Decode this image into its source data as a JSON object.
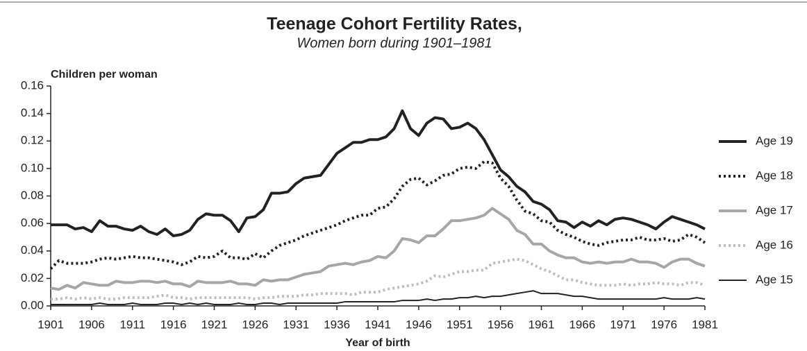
{
  "chart_data": {
    "type": "line",
    "title": "Teenage Cohort Fertility Rates,",
    "subtitle": "Women born during 1901–1981",
    "y_label": "Children per woman",
    "x_label": "Year of birth",
    "x": [
      1901,
      1902,
      1903,
      1904,
      1905,
      1906,
      1907,
      1908,
      1909,
      1910,
      1911,
      1912,
      1913,
      1914,
      1915,
      1916,
      1917,
      1918,
      1919,
      1920,
      1921,
      1922,
      1923,
      1924,
      1925,
      1926,
      1927,
      1928,
      1929,
      1930,
      1931,
      1932,
      1933,
      1934,
      1935,
      1936,
      1937,
      1938,
      1939,
      1940,
      1941,
      1942,
      1943,
      1944,
      1945,
      1946,
      1947,
      1948,
      1949,
      1950,
      1951,
      1952,
      1953,
      1954,
      1955,
      1956,
      1957,
      1958,
      1959,
      1960,
      1961,
      1962,
      1963,
      1964,
      1965,
      1966,
      1967,
      1968,
      1969,
      1970,
      1971,
      1972,
      1973,
      1974,
      1975,
      1976,
      1977,
      1978,
      1979,
      1980,
      1981
    ],
    "xlim": [
      1901,
      1981
    ],
    "xticks": [
      1901,
      1906,
      1911,
      1916,
      1921,
      1926,
      1931,
      1936,
      1941,
      1946,
      1951,
      1956,
      1961,
      1966,
      1971,
      1976,
      1981
    ],
    "ylim": [
      0,
      0.16
    ],
    "yticks": [
      {
        "value": 0,
        "label": "0.00"
      },
      0.02,
      0.04,
      0.06,
      0.08,
      {
        "value": 0.1,
        "label": "0.10"
      },
      0.12,
      0.14,
      0.16
    ],
    "legend": "right",
    "series": [
      {
        "name": "Age 19",
        "color": "#222222",
        "line_style": "solid",
        "weight": "heavy",
        "values": [
          0.059,
          0.059,
          0.059,
          0.056,
          0.057,
          0.054,
          0.062,
          0.058,
          0.058,
          0.056,
          0.055,
          0.058,
          0.054,
          0.052,
          0.056,
          0.051,
          0.052,
          0.055,
          0.063,
          0.067,
          0.066,
          0.066,
          0.062,
          0.054,
          0.064,
          0.065,
          0.07,
          0.082,
          0.082,
          0.083,
          0.089,
          0.093,
          0.094,
          0.095,
          0.103,
          0.111,
          0.115,
          0.119,
          0.119,
          0.121,
          0.121,
          0.123,
          0.129,
          0.142,
          0.129,
          0.124,
          0.133,
          0.137,
          0.136,
          0.129,
          0.13,
          0.133,
          0.129,
          0.121,
          0.11,
          0.099,
          0.094,
          0.087,
          0.083,
          0.076,
          0.074,
          0.07,
          0.062,
          0.061,
          0.057,
          0.061,
          0.058,
          0.062,
          0.059,
          0.063,
          0.064,
          0.063,
          0.061,
          0.059,
          0.056,
          0.061,
          0.065,
          0.063,
          0.061,
          0.059,
          0.056
        ]
      },
      {
        "name": "Age 18",
        "color": "#222222",
        "line_style": "dotted",
        "weight": "heavy",
        "values": [
          0.027,
          0.033,
          0.031,
          0.031,
          0.031,
          0.032,
          0.034,
          0.035,
          0.034,
          0.035,
          0.036,
          0.035,
          0.035,
          0.034,
          0.033,
          0.032,
          0.03,
          0.032,
          0.036,
          0.035,
          0.036,
          0.04,
          0.035,
          0.035,
          0.034,
          0.038,
          0.035,
          0.04,
          0.044,
          0.046,
          0.048,
          0.051,
          0.053,
          0.055,
          0.057,
          0.059,
          0.062,
          0.064,
          0.066,
          0.066,
          0.071,
          0.072,
          0.078,
          0.087,
          0.092,
          0.093,
          0.088,
          0.091,
          0.095,
          0.096,
          0.1,
          0.101,
          0.1,
          0.105,
          0.104,
          0.093,
          0.087,
          0.077,
          0.069,
          0.067,
          0.062,
          0.061,
          0.055,
          0.052,
          0.05,
          0.047,
          0.045,
          0.044,
          0.046,
          0.047,
          0.048,
          0.048,
          0.05,
          0.048,
          0.048,
          0.049,
          0.047,
          0.048,
          0.052,
          0.05,
          0.046
        ]
      },
      {
        "name": "Age 17",
        "color": "#a6a6a6",
        "line_style": "solid",
        "weight": "heavy",
        "values": [
          0.013,
          0.012,
          0.015,
          0.013,
          0.017,
          0.016,
          0.015,
          0.015,
          0.018,
          0.017,
          0.017,
          0.018,
          0.018,
          0.017,
          0.018,
          0.016,
          0.016,
          0.014,
          0.018,
          0.017,
          0.017,
          0.017,
          0.018,
          0.016,
          0.016,
          0.015,
          0.019,
          0.018,
          0.019,
          0.019,
          0.021,
          0.023,
          0.024,
          0.025,
          0.029,
          0.03,
          0.031,
          0.03,
          0.032,
          0.033,
          0.036,
          0.035,
          0.04,
          0.049,
          0.048,
          0.046,
          0.051,
          0.051,
          0.056,
          0.062,
          0.062,
          0.063,
          0.064,
          0.066,
          0.071,
          0.067,
          0.063,
          0.055,
          0.052,
          0.045,
          0.045,
          0.04,
          0.037,
          0.035,
          0.035,
          0.032,
          0.031,
          0.032,
          0.031,
          0.032,
          0.032,
          0.034,
          0.032,
          0.032,
          0.031,
          0.028,
          0.032,
          0.034,
          0.034,
          0.031,
          0.029
        ]
      },
      {
        "name": "Age 16",
        "color": "#bdbdbd",
        "line_style": "dotted",
        "weight": "heavy",
        "values": [
          0.005,
          0.005,
          0.006,
          0.005,
          0.006,
          0.005,
          0.006,
          0.005,
          0.005,
          0.006,
          0.006,
          0.006,
          0.006,
          0.007,
          0.008,
          0.006,
          0.006,
          0.005,
          0.006,
          0.006,
          0.006,
          0.006,
          0.006,
          0.006,
          0.006,
          0.005,
          0.006,
          0.006,
          0.007,
          0.007,
          0.007,
          0.008,
          0.008,
          0.009,
          0.009,
          0.009,
          0.009,
          0.008,
          0.01,
          0.01,
          0.01,
          0.012,
          0.013,
          0.014,
          0.015,
          0.016,
          0.018,
          0.022,
          0.021,
          0.023,
          0.025,
          0.025,
          0.026,
          0.026,
          0.031,
          0.032,
          0.033,
          0.034,
          0.033,
          0.03,
          0.027,
          0.025,
          0.022,
          0.019,
          0.019,
          0.017,
          0.016,
          0.015,
          0.015,
          0.015,
          0.016,
          0.015,
          0.016,
          0.016,
          0.017,
          0.016,
          0.016,
          0.015,
          0.017,
          0.017,
          0.015
        ]
      },
      {
        "name": "Age 15",
        "color": "#222222",
        "line_style": "solid",
        "weight": "light",
        "values": [
          0.001,
          0.001,
          0.001,
          0.001,
          0.001,
          0.001,
          0.002,
          0.001,
          0.001,
          0.001,
          0.002,
          0.001,
          0.001,
          0.001,
          0.002,
          0.002,
          0.001,
          0.002,
          0.001,
          0.002,
          0.001,
          0.001,
          0.001,
          0.002,
          0.001,
          0.001,
          0.002,
          0.002,
          0.001,
          0.002,
          0.002,
          0.002,
          0.002,
          0.002,
          0.002,
          0.002,
          0.003,
          0.003,
          0.003,
          0.003,
          0.003,
          0.003,
          0.003,
          0.004,
          0.004,
          0.004,
          0.005,
          0.004,
          0.005,
          0.005,
          0.006,
          0.006,
          0.007,
          0.006,
          0.007,
          0.007,
          0.008,
          0.009,
          0.01,
          0.011,
          0.009,
          0.009,
          0.009,
          0.008,
          0.007,
          0.007,
          0.006,
          0.005,
          0.005,
          0.005,
          0.005,
          0.005,
          0.005,
          0.005,
          0.005,
          0.006,
          0.005,
          0.005,
          0.005,
          0.006,
          0.005
        ]
      }
    ]
  }
}
